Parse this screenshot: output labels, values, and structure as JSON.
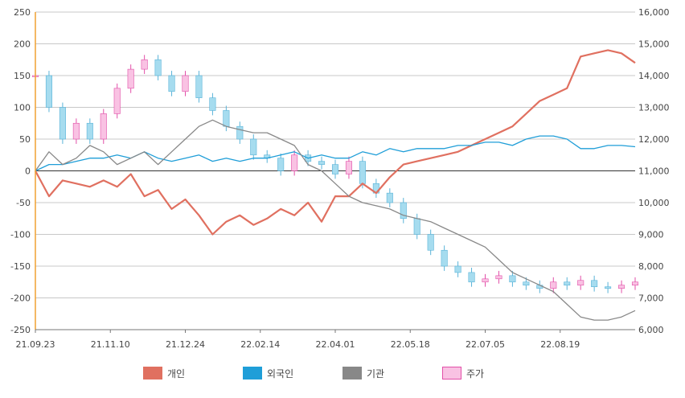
{
  "chart_data": {
    "type": "line",
    "x_labels": [
      "21.09.23",
      "21.11.10",
      "21.12.24",
      "22.02.14",
      "22.04.01",
      "22.05.18",
      "22.07.05",
      "22.08.19"
    ],
    "y_left": {
      "ticks": [
        250,
        200,
        150,
        100,
        50,
        0,
        -50,
        -100,
        -150,
        -200,
        -250
      ],
      "ylim": [
        -250,
        250
      ]
    },
    "y_right": {
      "ticks": [
        "16,000",
        "15,000",
        "14,000",
        "13,000",
        "12,000",
        "11,000",
        "10,000",
        "9,000",
        "8,000",
        "7,000",
        "6,000"
      ],
      "ylim": [
        6000,
        16000
      ]
    },
    "grid": true,
    "legend_position": "bottom",
    "series": [
      {
        "name": "개인",
        "axis": "left",
        "color": "#e07060",
        "values": [
          0,
          -40,
          -15,
          -20,
          -25,
          -15,
          -25,
          -5,
          -40,
          -30,
          -60,
          -45,
          -70,
          -100,
          -80,
          -70,
          -85,
          -75,
          -60,
          -70,
          -50,
          -80,
          -40,
          -40,
          -20,
          -35,
          -10,
          10,
          15,
          20,
          25,
          30,
          40,
          50,
          60,
          70,
          90,
          110,
          120,
          130,
          180,
          185,
          190,
          185,
          170
        ]
      },
      {
        "name": "외국인",
        "axis": "left",
        "color": "#1f9ed8",
        "values": [
          0,
          10,
          10,
          15,
          20,
          20,
          25,
          20,
          30,
          20,
          15,
          20,
          25,
          15,
          20,
          15,
          20,
          20,
          25,
          30,
          20,
          25,
          20,
          20,
          30,
          25,
          35,
          30,
          35,
          35,
          35,
          40,
          40,
          45,
          45,
          40,
          50,
          55,
          55,
          50,
          35,
          35,
          40,
          40,
          38
        ]
      },
      {
        "name": "기관",
        "axis": "left",
        "color": "#888888",
        "values": [
          0,
          30,
          10,
          20,
          40,
          30,
          10,
          20,
          30,
          10,
          30,
          50,
          70,
          80,
          70,
          65,
          60,
          60,
          50,
          40,
          10,
          0,
          -20,
          -40,
          -50,
          -55,
          -60,
          -70,
          -75,
          -80,
          -90,
          -100,
          -110,
          -120,
          -140,
          -160,
          -170,
          -180,
          -190,
          -210,
          -230,
          -235,
          -235,
          -230,
          -220
        ]
      },
      {
        "name": "주가",
        "axis": "right",
        "type": "candlestick",
        "color": "#e24fa8",
        "fill": "#f9c2e3",
        "values": [
          14000,
          13000,
          12000,
          12500,
          12000,
          12800,
          13600,
          14200,
          14500,
          14000,
          13500,
          14000,
          13300,
          12900,
          12400,
          12000,
          11500,
          11400,
          11000,
          11500,
          11300,
          11200,
          10900,
          11300,
          10600,
          10300,
          10000,
          9500,
          9000,
          8500,
          8000,
          7800,
          7500,
          7600,
          7700,
          7500,
          7400,
          7300,
          7500,
          7400,
          7550,
          7350,
          7300,
          7400,
          7500
        ]
      }
    ]
  }
}
